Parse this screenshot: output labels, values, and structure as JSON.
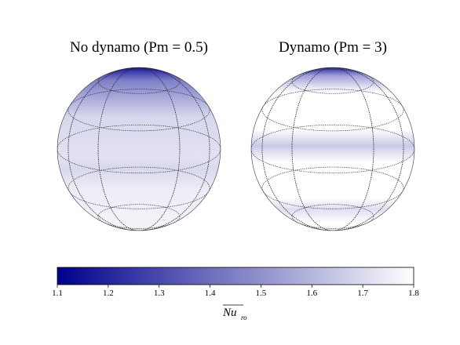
{
  "chart_data": {
    "type": "sphere-map",
    "panels": [
      {
        "title": "No dynamo (Pm = 0.5)"
      },
      {
        "title": "Dynamo (Pm = 3)"
      }
    ],
    "colorbar": {
      "label": {
        "text": "Nu",
        "subscript": "ro"
      },
      "xlim": [
        1.1,
        1.8
      ],
      "xticks": [
        1.1,
        1.2,
        1.3,
        1.4,
        1.5,
        1.6,
        1.7,
        1.8
      ],
      "colors": [
        "#00008b",
        "#ffffff"
      ]
    }
  }
}
